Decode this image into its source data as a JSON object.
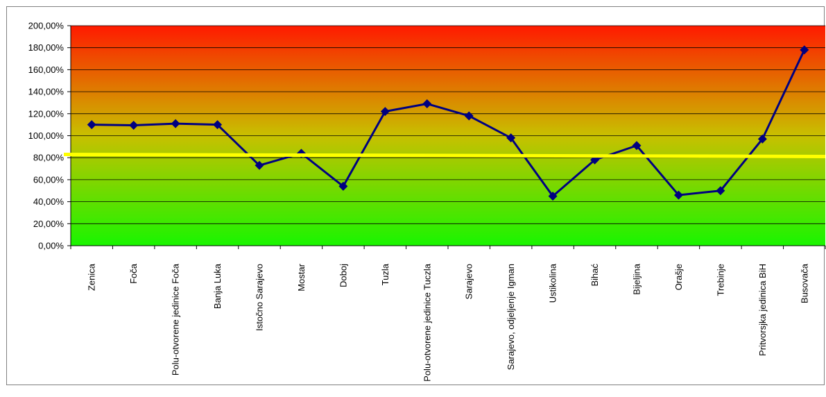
{
  "chart_data": {
    "type": "line",
    "title": "",
    "xlabel": "",
    "ylabel": "",
    "ylim": [
      0,
      200
    ],
    "y_ticks": [
      "0,00%",
      "20,00%",
      "40,00%",
      "60,00%",
      "80,00%",
      "100,00%",
      "120,00%",
      "140,00%",
      "160,00%",
      "180,00%",
      "200,00%"
    ],
    "categories": [
      "Zenica",
      "Foča",
      "Polu-otvorene jedinice Foča",
      "Banja Luka",
      "Istočno Sarajevo",
      "Mostar",
      "Doboj",
      "Tuzla",
      "Polu-otvorene jedinice Tuczla",
      "Sarajevo",
      "Sarajevo, odjeljenje Igman",
      "Ustikolina",
      "Bihać",
      "Bijeljina",
      "Orašje",
      "Trebinje",
      "Pritvorsjka jedinica BiH",
      "Busovača"
    ],
    "series": [
      {
        "values": [
          110,
          109.5,
          111,
          110,
          73,
          84,
          54,
          122,
          129,
          118,
          98,
          45,
          78,
          91,
          46,
          50,
          97,
          178
        ]
      }
    ],
    "reference_line": {
      "value": 82
    },
    "background": "gradient-red-to-green",
    "grid": true,
    "colors": {
      "line": "#000080",
      "marker": "#000080",
      "reference": "#ffff00",
      "top": "#ff0000",
      "bottom": "#00ff00"
    }
  }
}
